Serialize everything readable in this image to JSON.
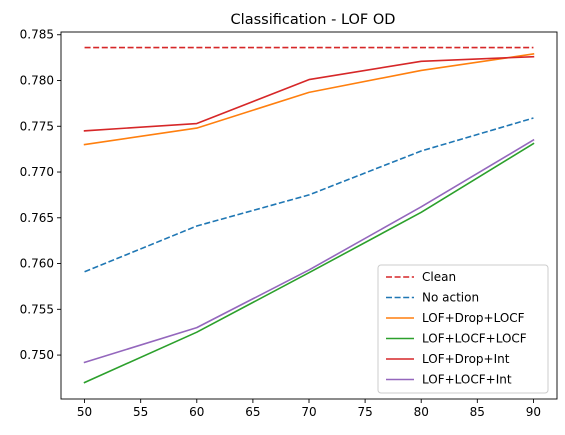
{
  "chart_data": {
    "type": "line",
    "title": "Classification - LOF OD",
    "xlabel": "",
    "ylabel": "",
    "x": [
      50,
      60,
      70,
      80,
      90
    ],
    "xlim": [
      47.9,
      92.1
    ],
    "ylim": [
      0.7452,
      0.7853
    ],
    "xticks": [
      50,
      55,
      60,
      65,
      70,
      75,
      80,
      85,
      90
    ],
    "yticks": [
      0.75,
      0.755,
      0.76,
      0.765,
      0.77,
      0.775,
      0.78,
      0.785
    ],
    "ytick_labels": [
      "0.750",
      "0.755",
      "0.760",
      "0.765",
      "0.770",
      "0.775",
      "0.780",
      "0.785"
    ],
    "grid": false,
    "legend_position": "lower-right",
    "series": [
      {
        "name": "Clean",
        "color": "#d62728",
        "linestyle": "dashed",
        "values": [
          0.7836,
          0.7836,
          0.7836,
          0.7836,
          0.7836
        ]
      },
      {
        "name": "No action",
        "color": "#1f77b4",
        "linestyle": "dashed",
        "values": [
          0.7591,
          0.7641,
          0.7675,
          0.7723,
          0.7759
        ]
      },
      {
        "name": "LOF+Drop+LOCF",
        "color": "#ff7f0e",
        "linestyle": "solid",
        "values": [
          0.773,
          0.7748,
          0.7787,
          0.7811,
          0.7829
        ]
      },
      {
        "name": "LOF+LOCF+LOCF",
        "color": "#2ca02c",
        "linestyle": "solid",
        "values": [
          0.747,
          0.7525,
          0.759,
          0.7656,
          0.7731
        ]
      },
      {
        "name": "LOF+Drop+Int",
        "color": "#d62728",
        "linestyle": "solid",
        "values": [
          0.7745,
          0.7753,
          0.7801,
          0.7821,
          0.7826
        ]
      },
      {
        "name": "LOF+LOCF+Int",
        "color": "#9467bd",
        "linestyle": "solid",
        "values": [
          0.7492,
          0.753,
          0.7593,
          0.7662,
          0.7735
        ]
      }
    ]
  }
}
